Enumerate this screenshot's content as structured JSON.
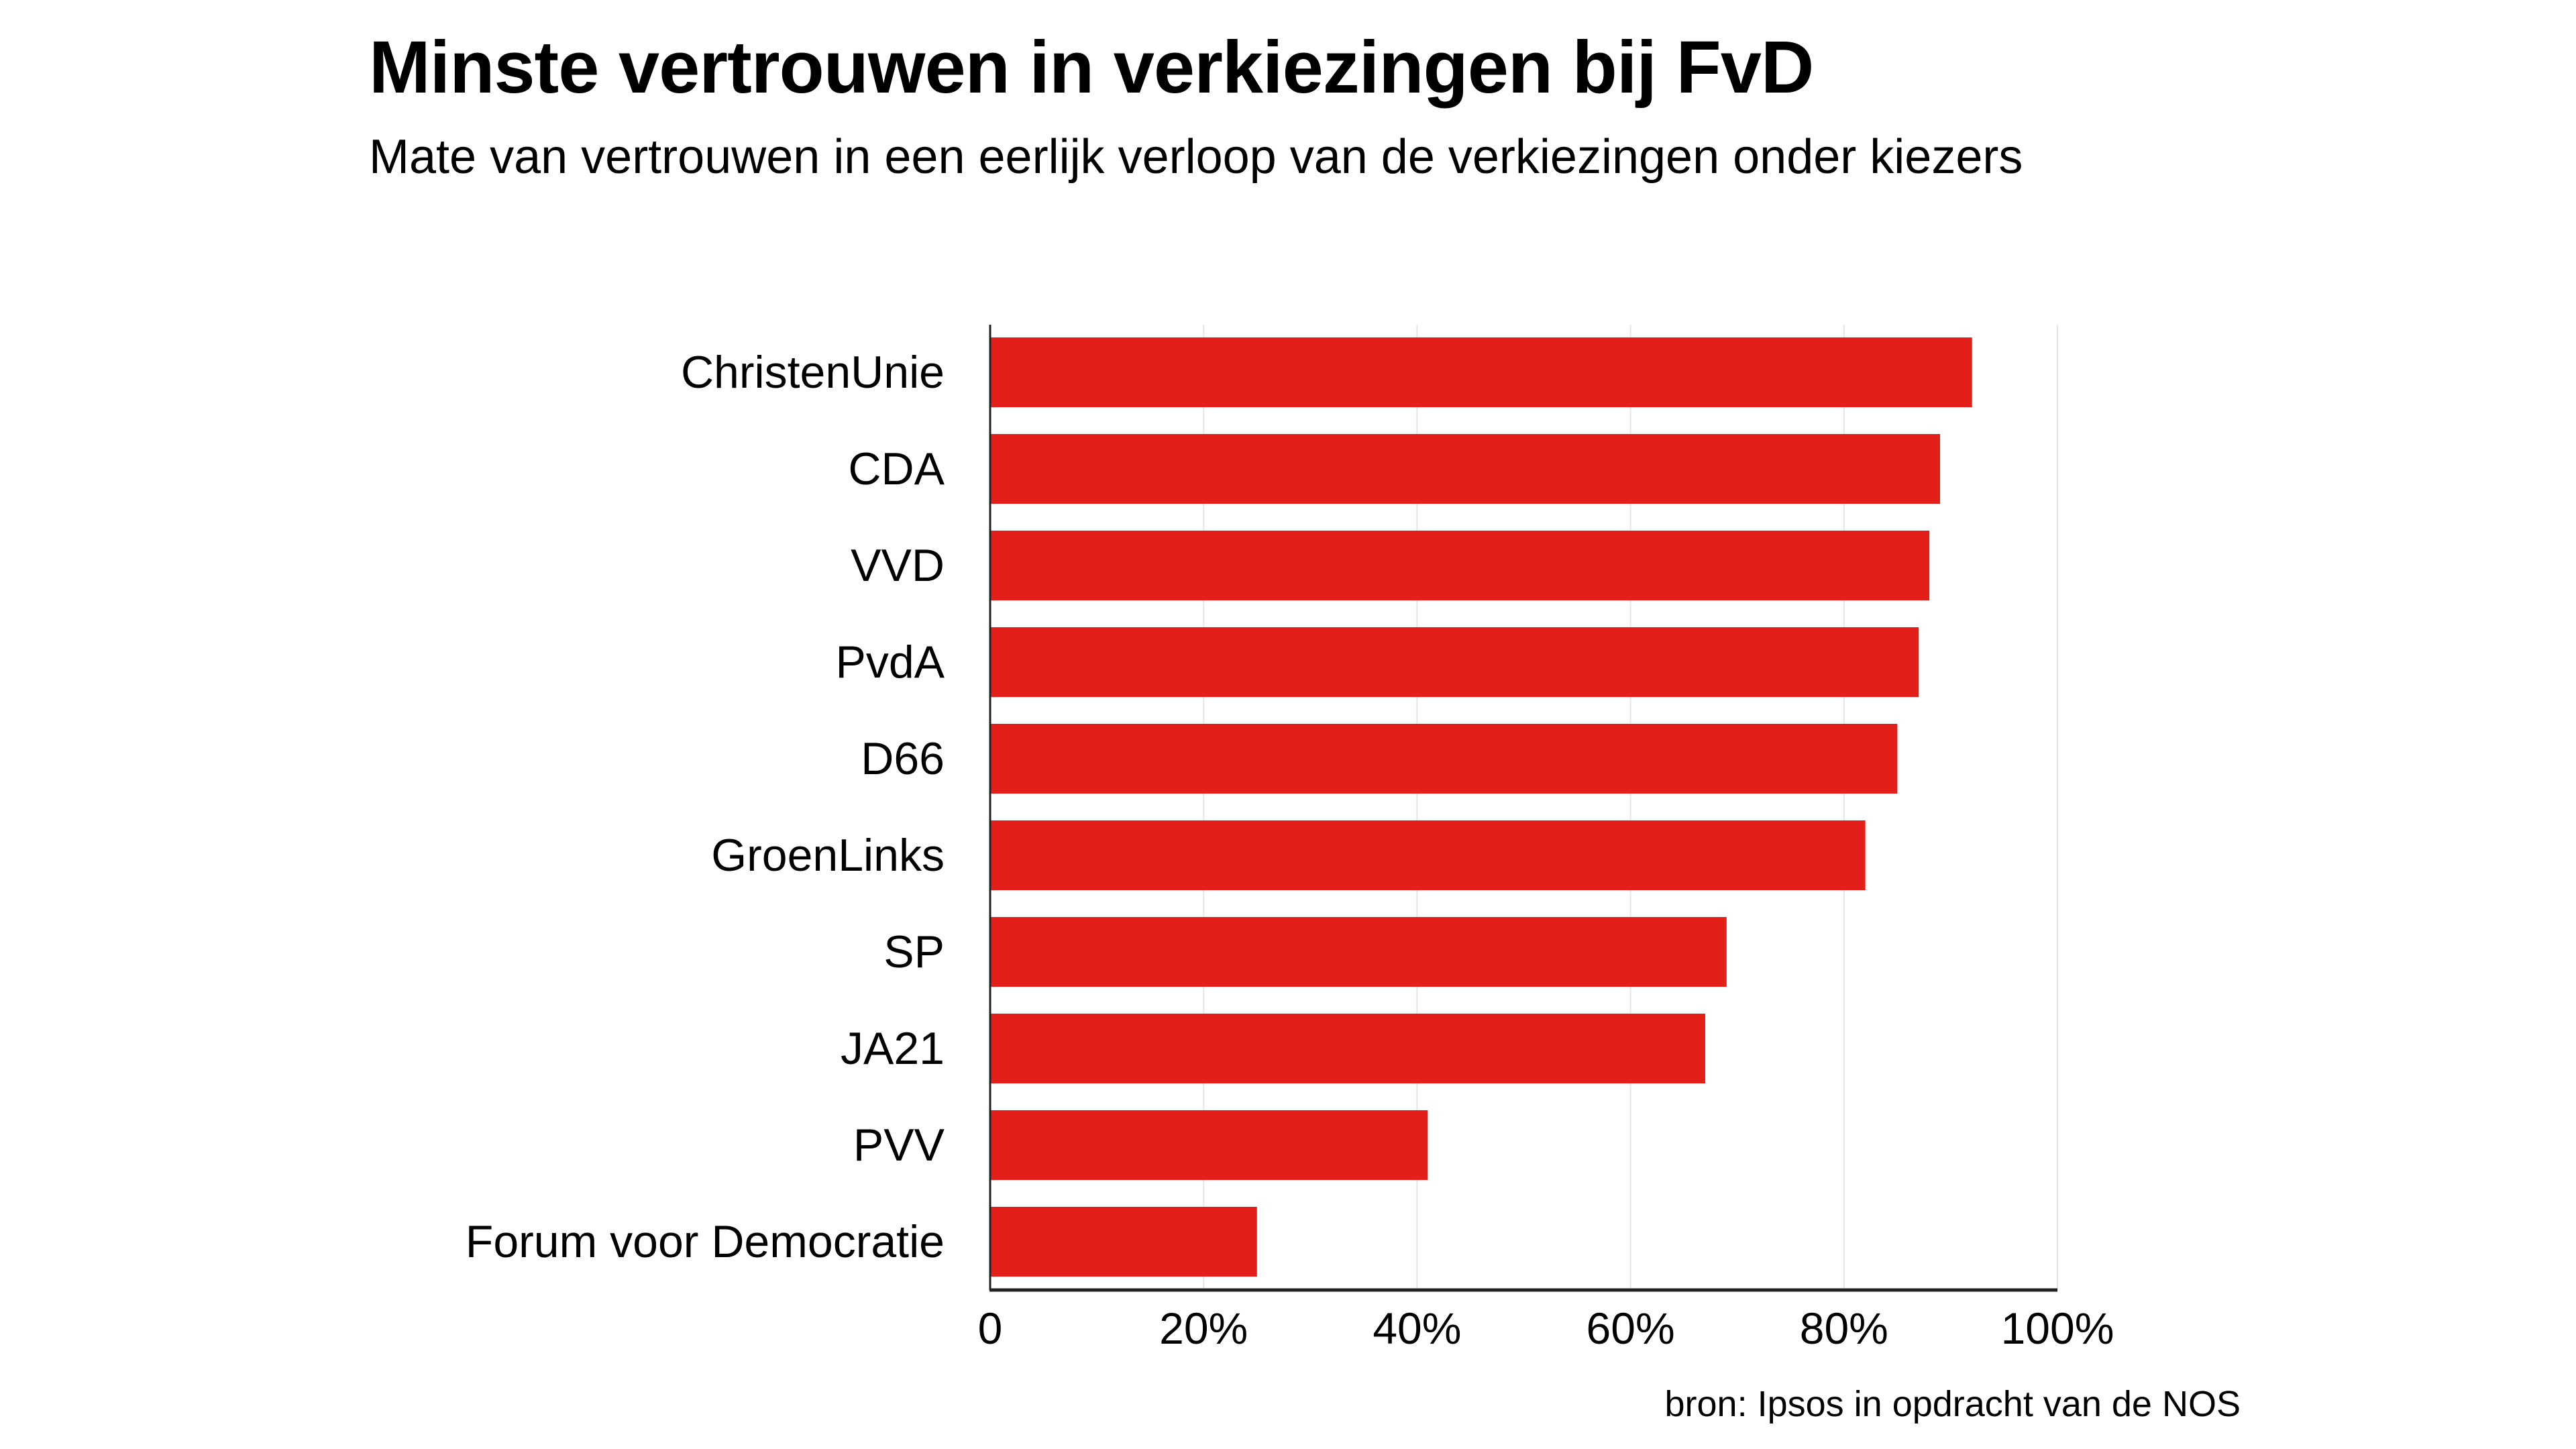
{
  "header": {
    "title": "Minste vertrouwen in verkiezingen bij FvD",
    "subtitle": "Mate van vertrouwen in een eerlijk verloop van de verkiezingen onder kiezers"
  },
  "footer": {
    "source": "bron: Ipsos in opdracht van de NOS"
  },
  "colors": {
    "bar": "#e21f18",
    "axis": "#222222",
    "grid": "#e6e6e6",
    "text": "#000000",
    "background": "#ffffff"
  },
  "chart_data": {
    "type": "bar",
    "orientation": "horizontal",
    "title": "Minste vertrouwen in verkiezingen bij FvD",
    "subtitle": "Mate van vertrouwen in een eerlijk verloop van de verkiezingen onder kiezers",
    "categories": [
      "ChristenUnie",
      "CDA",
      "VVD",
      "PvdA",
      "D66",
      "GroenLinks",
      "SP",
      "JA21",
      "PVV",
      "Forum voor Democratie"
    ],
    "values": [
      92,
      89,
      88,
      87,
      85,
      82,
      69,
      67,
      41,
      25
    ],
    "unit": "%",
    "xlabel": "",
    "ylabel": "",
    "xlim": [
      0,
      100
    ],
    "xticks": [
      0,
      20,
      40,
      60,
      80,
      100
    ],
    "xtick_labels": [
      "0",
      "20%",
      "40%",
      "60%",
      "80%",
      "100%"
    ],
    "grid": "vertical",
    "legend": "none",
    "source": "bron: Ipsos in opdracht van de NOS"
  }
}
